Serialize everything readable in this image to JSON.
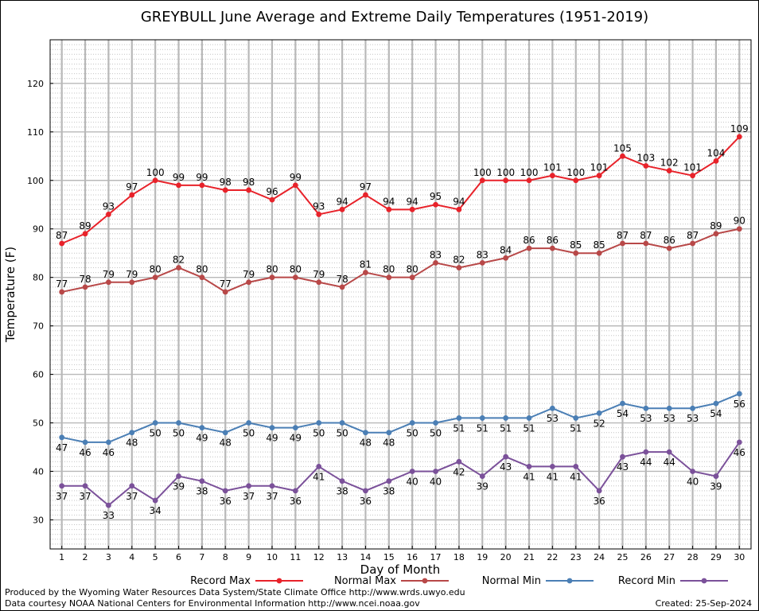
{
  "chart_data": {
    "type": "line",
    "title": "GREYBULL June Average and Extreme Daily Temperatures (1951-2019)",
    "xlabel": "Day of Month",
    "ylabel": "Temperature (F)",
    "x": [
      1,
      2,
      3,
      4,
      5,
      6,
      7,
      8,
      9,
      10,
      11,
      12,
      13,
      14,
      15,
      16,
      17,
      18,
      19,
      20,
      21,
      22,
      23,
      24,
      25,
      26,
      27,
      28,
      29,
      30
    ],
    "xlim": [
      0.5,
      30.5
    ],
    "ylim": [
      24,
      129
    ],
    "yticks": [
      30,
      40,
      50,
      60,
      70,
      80,
      90,
      100,
      110,
      120
    ],
    "grid": true,
    "legend_position": "bottom",
    "series": [
      {
        "name": "Record Max",
        "color": "#e8222a",
        "label_pos": "above",
        "values": [
          87,
          89,
          93,
          97,
          100,
          99,
          99,
          98,
          98,
          96,
          99,
          93,
          94,
          97,
          94,
          94,
          95,
          94,
          100,
          100,
          100,
          101,
          100,
          101,
          105,
          103,
          102,
          101,
          104,
          109
        ]
      },
      {
        "name": "Normal Max",
        "color": "#b84848",
        "label_pos": "above",
        "values": [
          77,
          78,
          79,
          79,
          80,
          82,
          80,
          77,
          79,
          80,
          80,
          79,
          78,
          81,
          80,
          80,
          83,
          82,
          83,
          84,
          86,
          86,
          85,
          85,
          87,
          87,
          86,
          87,
          89,
          90
        ]
      },
      {
        "name": "Normal Min",
        "color": "#4b7fb5",
        "label_pos": "below",
        "values": [
          47,
          46,
          46,
          48,
          50,
          50,
          49,
          48,
          50,
          49,
          49,
          50,
          50,
          48,
          48,
          50,
          50,
          51,
          51,
          51,
          51,
          53,
          51,
          52,
          54,
          53,
          53,
          53,
          54,
          56
        ]
      },
      {
        "name": "Record Min",
        "color": "#7b519a",
        "label_pos": "below",
        "values": [
          37,
          37,
          33,
          37,
          34,
          39,
          38,
          36,
          37,
          37,
          36,
          41,
          38,
          36,
          38,
          40,
          40,
          42,
          39,
          43,
          41,
          41,
          41,
          36,
          43,
          44,
          44,
          40,
          39,
          46
        ]
      }
    ]
  },
  "footer": {
    "produced_by": "Produced by the Wyoming Water Resources Data System/State Climate Office http://www.wrds.uwyo.edu",
    "courtesy": "Data courtesy NOAA National Centers for Environmental Information http://www.ncei.noaa.gov",
    "created": "Created:  25-Sep-2024"
  }
}
